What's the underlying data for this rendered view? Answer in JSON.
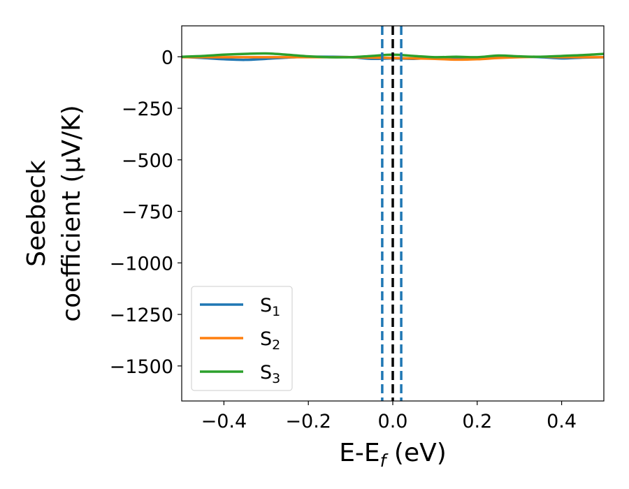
{
  "chart_data": {
    "type": "line",
    "title": "",
    "xlabel": {
      "main": "E-E",
      "sub": "f",
      "rest": " (eV)"
    },
    "ylabel": {
      "line1": "Seebeck",
      "line2": "coefficient  (μV/K)"
    },
    "xlim": [
      -0.5,
      0.5
    ],
    "ylim": [
      -1670,
      150
    ],
    "xticks": [
      -0.4,
      -0.2,
      0.0,
      0.2,
      0.4
    ],
    "xtick_labels": [
      "−0.4",
      "−0.2",
      "0.0",
      "0.2",
      "0.4"
    ],
    "yticks": [
      0,
      -250,
      -500,
      -750,
      -1000,
      -1250,
      -1500
    ],
    "ytick_labels": [
      "0",
      "−250",
      "−500",
      "−750",
      "−1000",
      "−1250",
      "−1500"
    ],
    "grid": false,
    "legend_position": "lower-left",
    "vlines": [
      {
        "x": -0.025,
        "style": "dashed",
        "color": "#1f77b4"
      },
      {
        "x": 0.0,
        "style": "dashed",
        "color": "#000000"
      },
      {
        "x": 0.02,
        "style": "dashed",
        "color": "#1f77b4"
      }
    ],
    "x": [
      -0.5,
      -0.45,
      -0.4,
      -0.35,
      -0.3,
      -0.25,
      -0.2,
      -0.15,
      -0.1,
      -0.05,
      0.0,
      0.05,
      0.1,
      0.15,
      0.2,
      0.25,
      0.3,
      0.35,
      0.4,
      0.45,
      0.5
    ],
    "series": [
      {
        "name": "S",
        "sub": "1",
        "color": "#1f77b4",
        "values": [
          0,
          -6,
          -12,
          -15,
          -10,
          -4,
          0,
          0,
          -2,
          -10,
          -8,
          -10,
          -5,
          -10,
          -8,
          -2,
          0,
          -2,
          -8,
          -4,
          -2
        ]
      },
      {
        "name": "S",
        "sub": "2",
        "color": "#ff7f0e",
        "values": [
          -2,
          -2,
          -2,
          -2,
          -2,
          -2,
          -2,
          -2,
          -2,
          -4,
          -6,
          -8,
          -10,
          -14,
          -12,
          -6,
          -2,
          0,
          -2,
          -2,
          -2
        ]
      },
      {
        "name": "S",
        "sub": "3",
        "color": "#2ca02c",
        "values": [
          0,
          4,
          10,
          14,
          16,
          10,
          2,
          -2,
          -2,
          4,
          10,
          4,
          -2,
          0,
          -2,
          6,
          2,
          0,
          4,
          8,
          14
        ]
      }
    ]
  }
}
